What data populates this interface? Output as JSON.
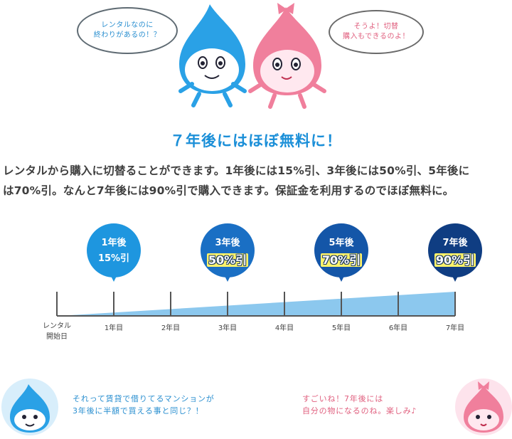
{
  "characters": {
    "blue_bubble": [
      "レンタルなのに",
      "終わりがあるの！？"
    ],
    "pink_bubble": [
      "そうよ！切替",
      "購入もできるのよ！"
    ]
  },
  "headline": "７年後にはほぼ無料に！",
  "description": [
    "レンタルから購入に切替ることができます。1年後には15%引、3年後には50%引、5年後に",
    "は70%引。なんと7年後には90%引で購入できます。保証金を利用するのでほぼ無料に。"
  ],
  "timeline": {
    "milestones": [
      {
        "label": "1年後",
        "value": "15%引",
        "color": "#1e96df"
      },
      {
        "label": "3年後",
        "value": "50%引",
        "color": "#1a6fc4"
      },
      {
        "label": "5年後",
        "value": "70%引",
        "color": "#1456a8"
      },
      {
        "label": "7年後",
        "value": "90%引",
        "color": "#0f3d82"
      }
    ],
    "axis_labels": [
      "レンタル",
      "開始日",
      "1年目",
      "2年目",
      "3年目",
      "4年目",
      "5年目",
      "6年目",
      "7年目"
    ],
    "bar_color": "#8cc8ee"
  },
  "bottom": {
    "blue_text": [
      "それって賃貸で借りてるマンションが",
      "3年後に半額で買える事と同じ？！"
    ],
    "pink_text": [
      "すごいね！7年後には",
      "自分の物になるのね。楽しみ♪"
    ]
  }
}
